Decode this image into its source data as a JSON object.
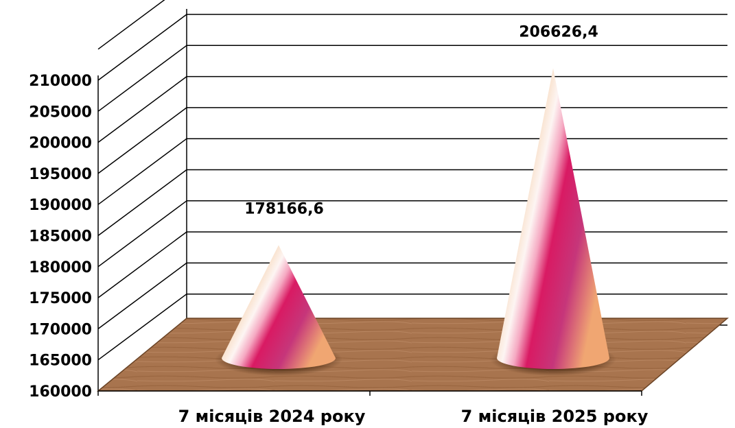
{
  "chart_data": {
    "type": "bar",
    "style": "3d-cone",
    "categories": [
      "7 місяців 2024 року",
      "7 місяців 2025 року"
    ],
    "values": [
      178166.6,
      206626.4
    ],
    "data_labels": [
      "178166,6",
      "206626,4"
    ],
    "ylim": [
      160000,
      210000
    ],
    "y_ticks": [
      "160000",
      "165000",
      "170000",
      "175000",
      "180000",
      "185000",
      "190000",
      "195000",
      "200000",
      "205000",
      "210000"
    ],
    "grid": true,
    "legend": "none",
    "colors": {
      "floor": "#a8744e",
      "floor_edge": "#6b4426",
      "cone_light": "#f3c38c",
      "cone_highlight": "#fdf4f2",
      "cone_dark": "#d81b64",
      "grid": "#000000"
    }
  }
}
